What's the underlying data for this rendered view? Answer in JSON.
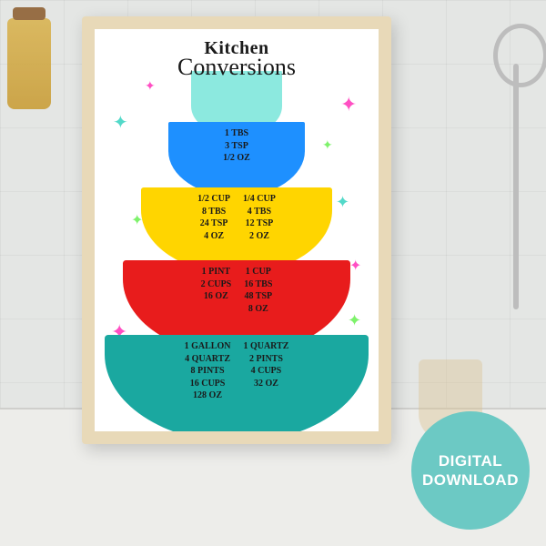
{
  "title": {
    "line1": "Kitchen",
    "line2": "Conversions"
  },
  "bowls": [
    {
      "color": "#1e90ff",
      "columns": [
        [
          "1 TBS",
          "3 TSP",
          "1/2 OZ"
        ]
      ]
    },
    {
      "color": "#ffd500",
      "columns": [
        [
          "1/2 CUP",
          "8 TBS",
          "24 TSP",
          "4 OZ"
        ],
        [
          "1/4 CUP",
          "4 TBS",
          "12 TSP",
          "2 OZ"
        ]
      ]
    },
    {
      "color": "#e81c1c",
      "columns": [
        [
          "1 PINT",
          "2 CUPS",
          "16 OZ"
        ],
        [
          "1 CUP",
          "16 TBS",
          "48 TSP",
          "8 OZ"
        ]
      ]
    },
    {
      "color": "#1aa8a0",
      "columns": [
        [
          "1 GALLON",
          "4 QUARTZ",
          "8 PINTS",
          "16 CUPS",
          "128 OZ"
        ],
        [
          "1 QUARTZ",
          "2 PINTS",
          "4 CUPS",
          "32 OZ"
        ]
      ]
    }
  ],
  "top_bowl_color": "#7fe7dc",
  "sparkle_colors": [
    "#53d9c9",
    "#ff4fc3",
    "#7ef26b"
  ],
  "badge": {
    "text_line1": "DIGITAL",
    "text_line2": "DOWNLOAD",
    "color": "#6cc9c4"
  },
  "background_color": "#e5e7e5",
  "frame_color": "#e7d7b3",
  "poster_bg": "#ffffff"
}
